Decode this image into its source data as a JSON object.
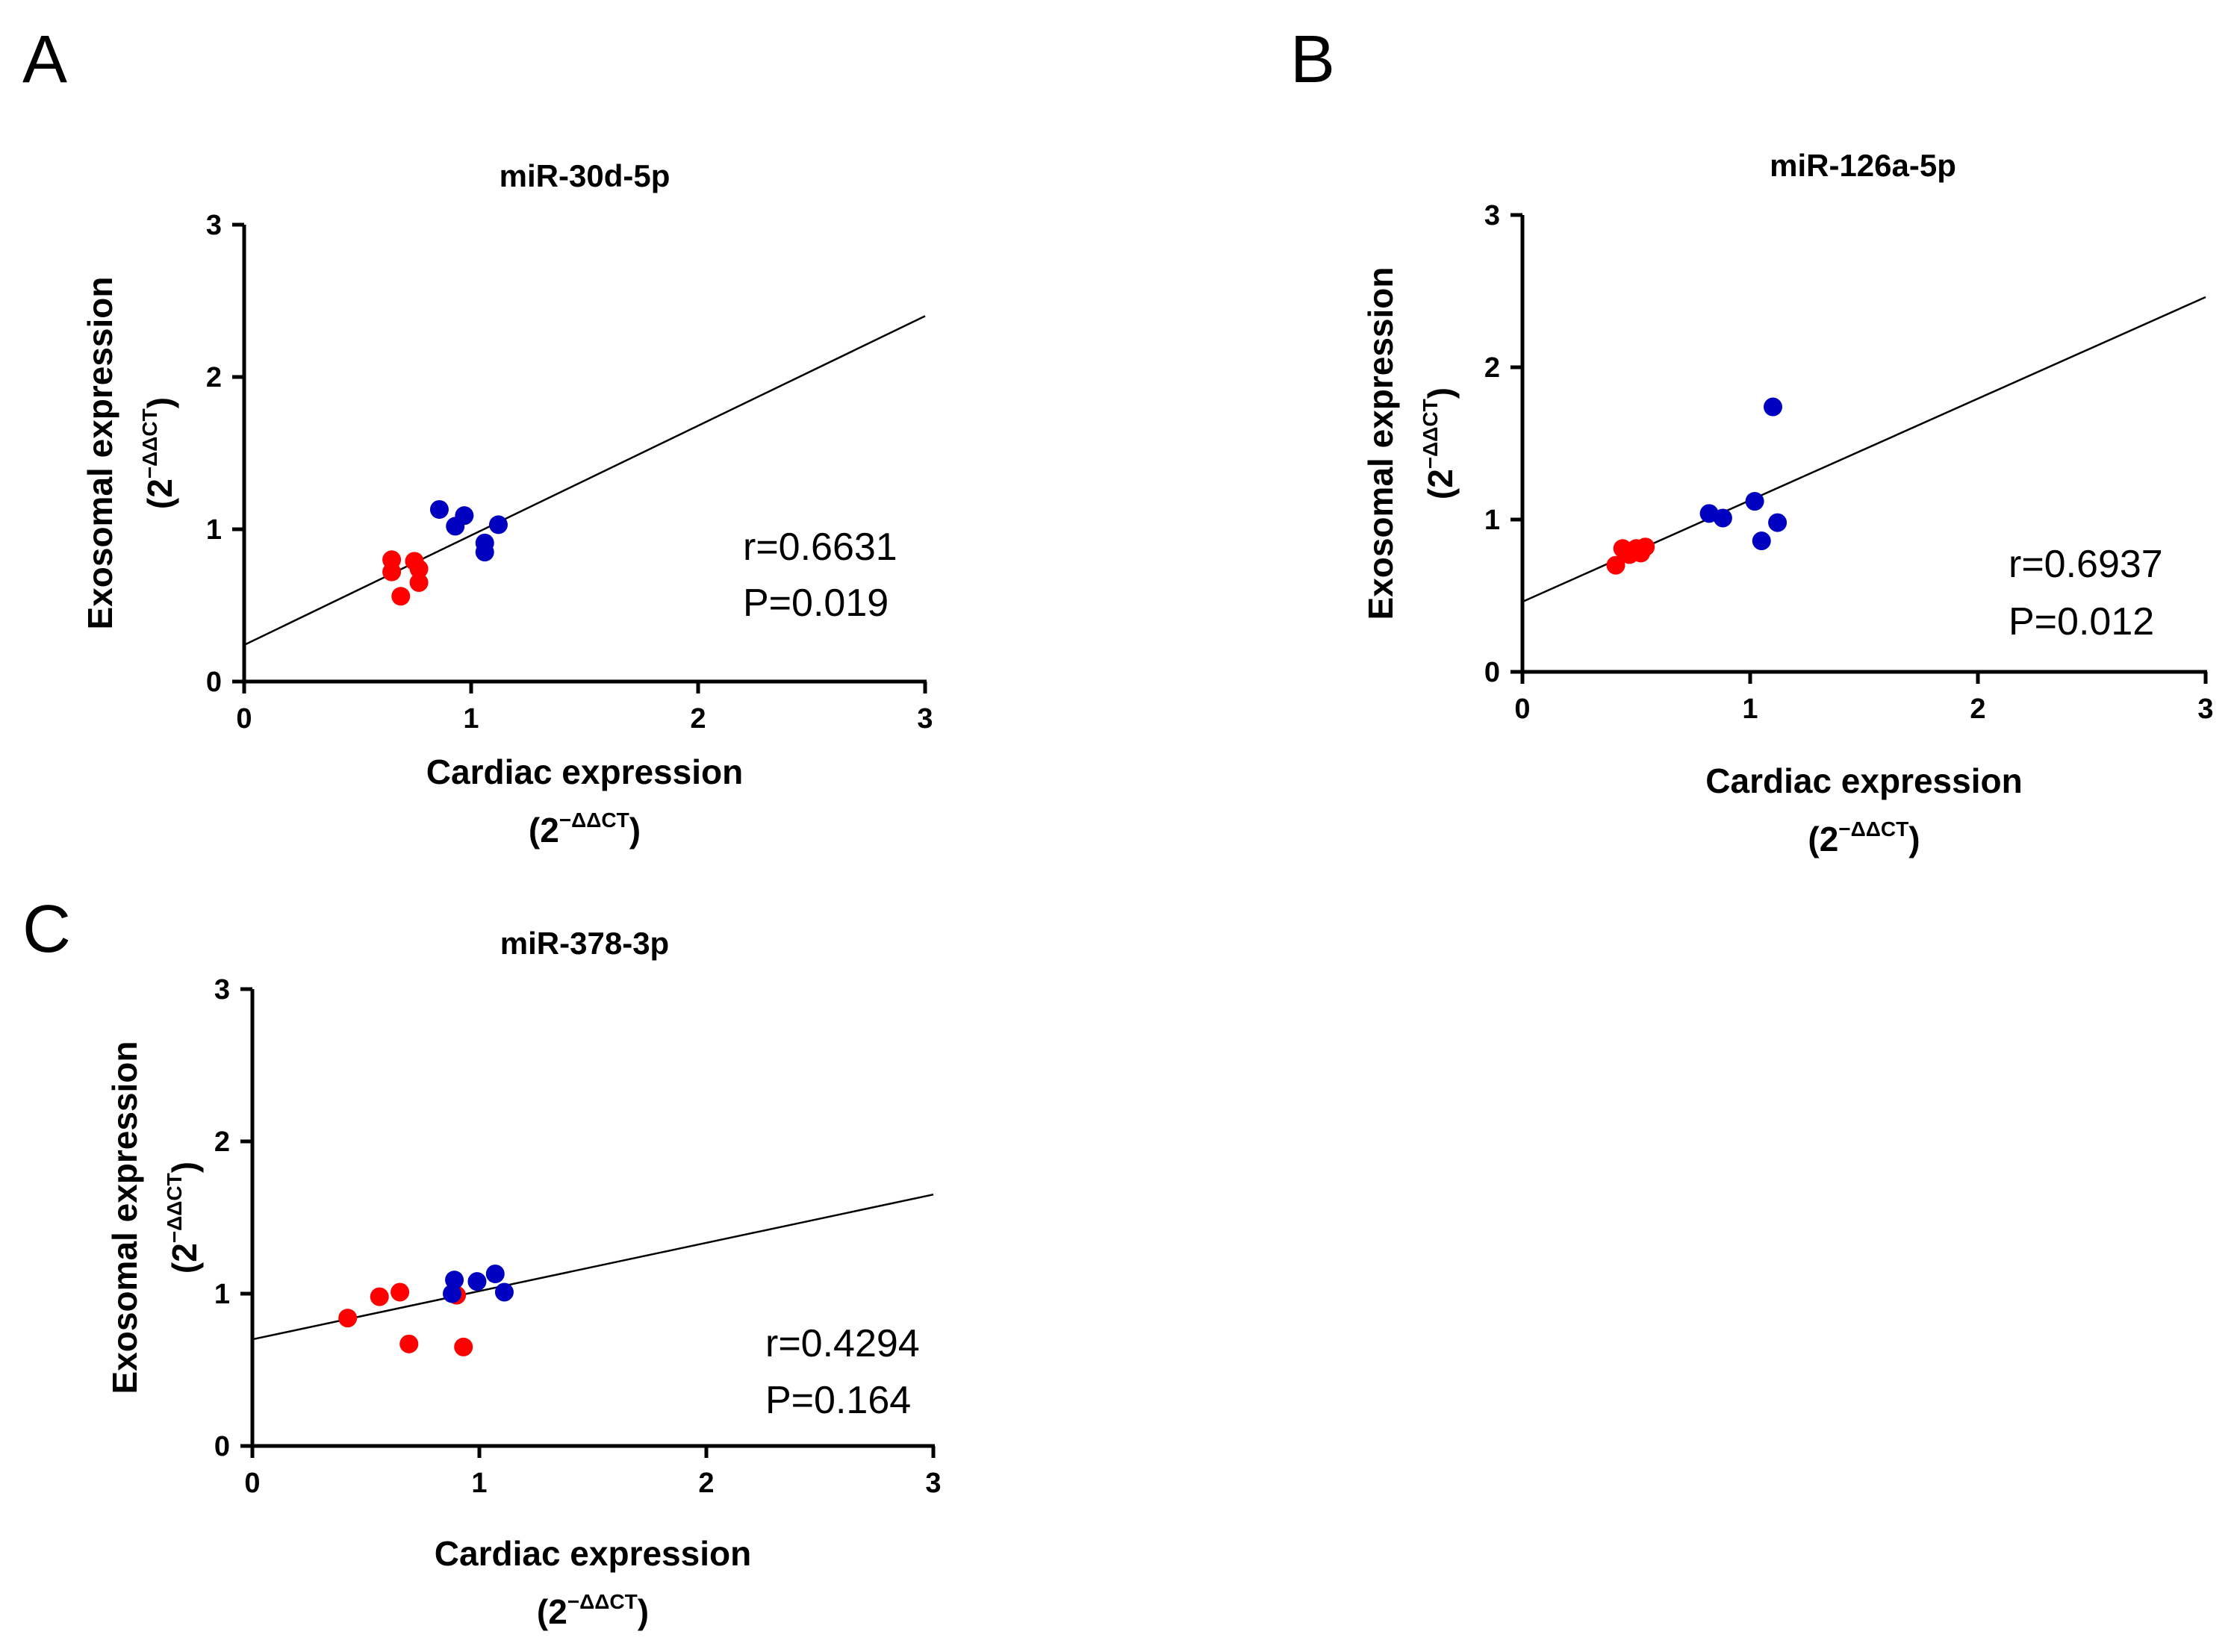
{
  "chart_data": [
    {
      "panel": "A",
      "type": "scatter",
      "title": "miR-30d-5p",
      "xlabel": "Cardiac expression",
      "xlabel_sub": "(2",
      "xlabel_sup": "−ΔΔCT",
      "xlabel_close": ")",
      "ylabel": "Exosomal expression",
      "ylabel_sub": "(2",
      "ylabel_sup": "−ΔΔCT",
      "ylabel_close": ")",
      "xlim": [
        0,
        3
      ],
      "ylim": [
        0,
        3
      ],
      "xticks": [
        0,
        1,
        2,
        3
      ],
      "yticks": [
        0,
        1,
        2,
        3
      ],
      "stat_r": "r=0.6631",
      "stat_p": "P=0.019",
      "fit_line": {
        "intercept": 0.24,
        "slope": 0.72
      },
      "series": [
        {
          "name": "red",
          "color": "#ff0000",
          "points": [
            [
              0.65,
              0.8
            ],
            [
              0.65,
              0.72
            ],
            [
              0.69,
              0.56
            ],
            [
              0.75,
              0.79
            ],
            [
              0.77,
              0.74
            ],
            [
              0.77,
              0.65
            ]
          ]
        },
        {
          "name": "blue",
          "color": "#0000c0",
          "points": [
            [
              0.86,
              1.13
            ],
            [
              0.93,
              1.02
            ],
            [
              0.97,
              1.09
            ],
            [
              1.06,
              0.85
            ],
            [
              1.06,
              0.91
            ],
            [
              1.12,
              1.03
            ]
          ]
        }
      ]
    },
    {
      "panel": "B",
      "type": "scatter",
      "title": "miR-126a-5p",
      "xlabel": "Cardiac expression",
      "xlabel_sub": "(2",
      "xlabel_sup": "−ΔΔCT",
      "xlabel_close": ")",
      "ylabel": "Exosomal expression",
      "ylabel_sub": "(2",
      "ylabel_sup": "−ΔΔCT",
      "ylabel_close": ")",
      "xlim": [
        0,
        3
      ],
      "ylim": [
        0,
        3
      ],
      "xticks": [
        0,
        1,
        2,
        3
      ],
      "yticks": [
        0,
        1,
        2,
        3
      ],
      "stat_r": "r=0.6937",
      "stat_p": "P=0.012",
      "fit_line": {
        "intercept": 0.46,
        "slope": 0.667
      },
      "series": [
        {
          "name": "red",
          "color": "#ff0000",
          "points": [
            [
              0.41,
              0.7
            ],
            [
              0.44,
              0.81
            ],
            [
              0.47,
              0.77
            ],
            [
              0.5,
              0.81
            ],
            [
              0.52,
              0.78
            ],
            [
              0.54,
              0.82
            ]
          ]
        },
        {
          "name": "blue",
          "color": "#0000c0",
          "points": [
            [
              0.82,
              1.04
            ],
            [
              0.88,
              1.01
            ],
            [
              1.02,
              1.12
            ],
            [
              1.05,
              0.86
            ],
            [
              1.1,
              1.74
            ],
            [
              1.12,
              0.98
            ]
          ]
        }
      ]
    },
    {
      "panel": "C",
      "type": "scatter",
      "title": "miR-378-3p",
      "xlabel": "Cardiac expression",
      "xlabel_sub": "(2",
      "xlabel_sup": "−ΔΔCT",
      "xlabel_close": ")",
      "ylabel": "Exosomal expression",
      "ylabel_sub": "(2",
      "ylabel_sup": "−ΔΔCT",
      "ylabel_close": ")",
      "xlim": [
        0,
        3
      ],
      "ylim": [
        0,
        3
      ],
      "xticks": [
        0,
        1,
        2,
        3
      ],
      "yticks": [
        0,
        1,
        2,
        3
      ],
      "stat_r": "r=0.4294",
      "stat_p": "P=0.164",
      "fit_line": {
        "intercept": 0.7,
        "slope": 0.317
      },
      "series": [
        {
          "name": "red",
          "color": "#ff0000",
          "points": [
            [
              0.42,
              0.84
            ],
            [
              0.56,
              0.98
            ],
            [
              0.65,
              1.01
            ],
            [
              0.69,
              0.67
            ],
            [
              0.9,
              0.99
            ],
            [
              0.93,
              0.65
            ]
          ]
        },
        {
          "name": "blue",
          "color": "#0000c0",
          "points": [
            [
              0.88,
              1.0
            ],
            [
              0.89,
              1.09
            ],
            [
              0.99,
              1.08
            ],
            [
              1.07,
              1.13
            ],
            [
              1.11,
              1.01
            ]
          ]
        }
      ]
    }
  ]
}
